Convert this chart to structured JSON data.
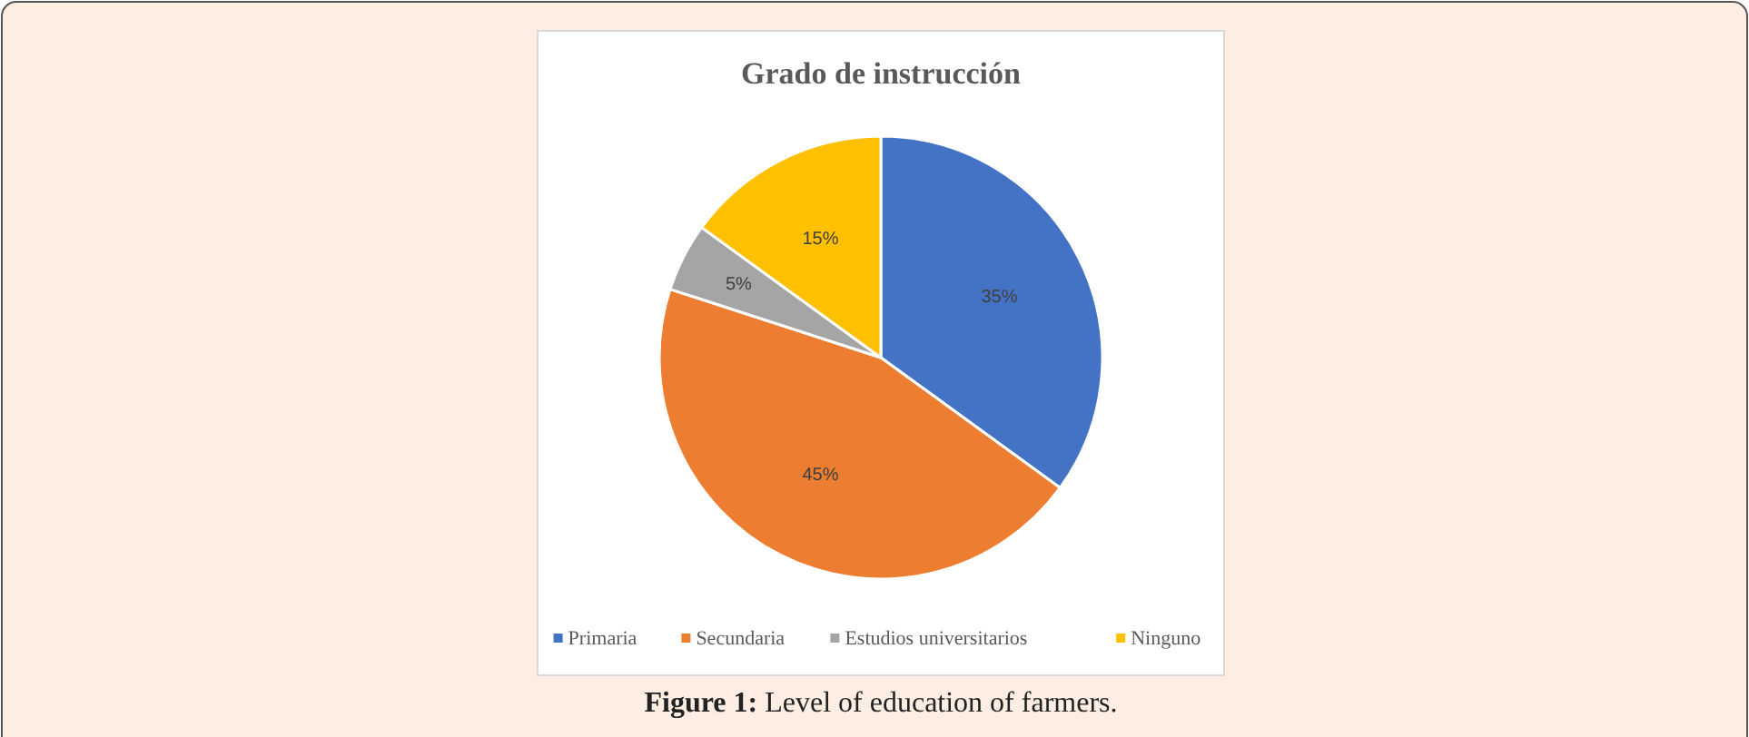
{
  "chart_data": {
    "type": "pie",
    "title": "Grado de instrucción",
    "categories": [
      "Primaria",
      "Secundaria",
      "Estudios universitarios",
      "Ninguno"
    ],
    "values": [
      35,
      45,
      5,
      15
    ],
    "colors": [
      "#4472c4",
      "#ed7d31",
      "#a5a5a5",
      "#ffc000"
    ],
    "value_labels": [
      "35%",
      "45%",
      "5%",
      "15%"
    ],
    "legend": "bottom",
    "annotations": [
      "Figure 1: Level of education of farmers."
    ]
  }
}
